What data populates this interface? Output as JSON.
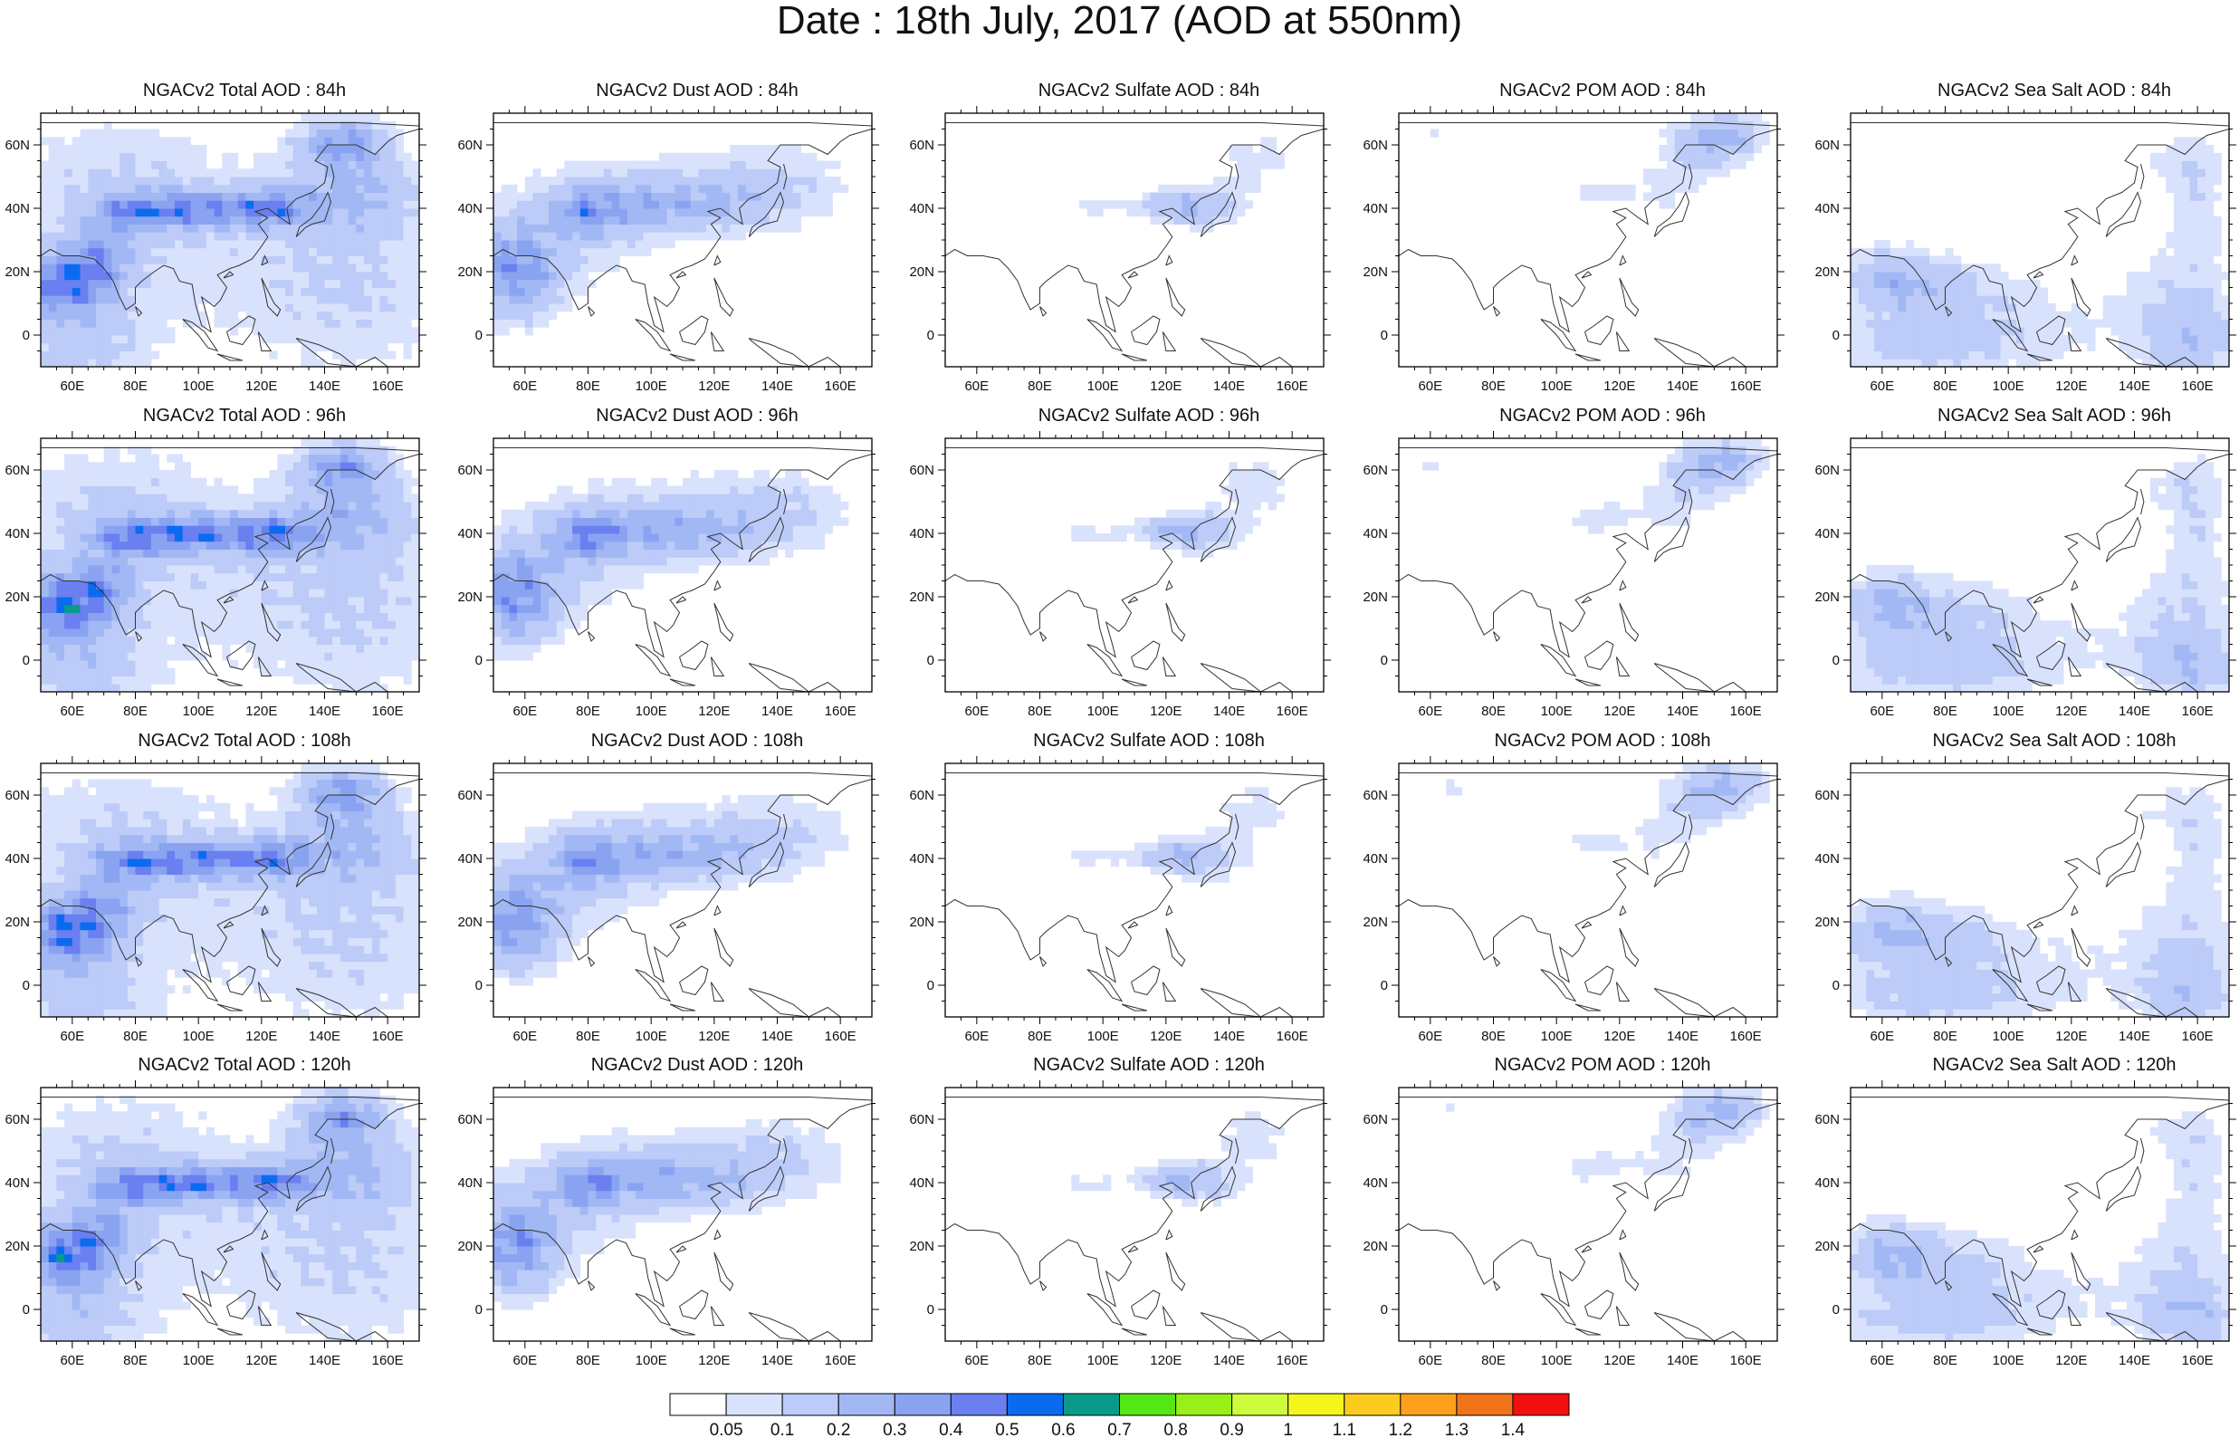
{
  "title": "Date : 18th July, 2017 (AOD at 550nm)",
  "chart_data": {
    "type": "heatmap",
    "layout": "4 rows x 5 columns of map panels (rows = forecast hour, columns = aerosol species)",
    "rows": [
      "84h",
      "96h",
      "108h",
      "120h"
    ],
    "columns": [
      "Total",
      "Dust",
      "Sulfate",
      "POM",
      "Sea Salt"
    ],
    "panels": [
      {
        "title": "NGACv2 Total AOD : 84h"
      },
      {
        "title": "NGACv2 Dust AOD : 84h"
      },
      {
        "title": "NGACv2 Sulfate AOD : 84h"
      },
      {
        "title": "NGACv2 POM AOD : 84h"
      },
      {
        "title": "NGACv2 Sea Salt AOD : 84h"
      },
      {
        "title": "NGACv2 Total AOD : 96h"
      },
      {
        "title": "NGACv2 Dust AOD : 96h"
      },
      {
        "title": "NGACv2 Sulfate AOD : 96h"
      },
      {
        "title": "NGACv2 POM AOD : 96h"
      },
      {
        "title": "NGACv2 Sea Salt AOD : 96h"
      },
      {
        "title": "NGACv2 Total AOD : 108h"
      },
      {
        "title": "NGACv2 Dust AOD : 108h"
      },
      {
        "title": "NGACv2 Sulfate AOD : 108h"
      },
      {
        "title": "NGACv2 POM AOD : 108h"
      },
      {
        "title": "NGACv2 Sea Salt AOD : 108h"
      },
      {
        "title": "NGACv2 Total AOD : 120h"
      },
      {
        "title": "NGACv2 Dust AOD : 120h"
      },
      {
        "title": "NGACv2 Sulfate AOD : 120h"
      },
      {
        "title": "NGACv2 POM AOD : 120h"
      },
      {
        "title": "NGACv2 Sea Salt  AOD : 120h"
      }
    ],
    "x_axis": {
      "ticks": [
        "60E",
        "80E",
        "100E",
        "120E",
        "140E",
        "160E"
      ],
      "values": [
        60,
        80,
        100,
        120,
        140,
        160
      ],
      "range": [
        50,
        170
      ]
    },
    "y_axis": {
      "ticks": [
        "0",
        "20N",
        "40N",
        "60N"
      ],
      "values": [
        0,
        20,
        40,
        60
      ],
      "range": [
        -10,
        70
      ]
    },
    "colorbar": {
      "levels": [
        "0.05",
        "0.1",
        "0.2",
        "0.3",
        "0.4",
        "0.5",
        "0.6",
        "0.7",
        "0.8",
        "0.9",
        "1",
        "1.1",
        "1.2",
        "1.3",
        "1.4"
      ],
      "colors": [
        "#ffffff",
        "#d9e2fc",
        "#bccbf7",
        "#a2b8f5",
        "#8aa3f1",
        "#6a7ff0",
        "#0a6bf0",
        "#0a9a8a",
        "#55e615",
        "#99ef18",
        "#cdfc3c",
        "#f5f51e",
        "#fbcc1e",
        "#fba21a",
        "#f2741a",
        "#f20f0f"
      ]
    }
  }
}
